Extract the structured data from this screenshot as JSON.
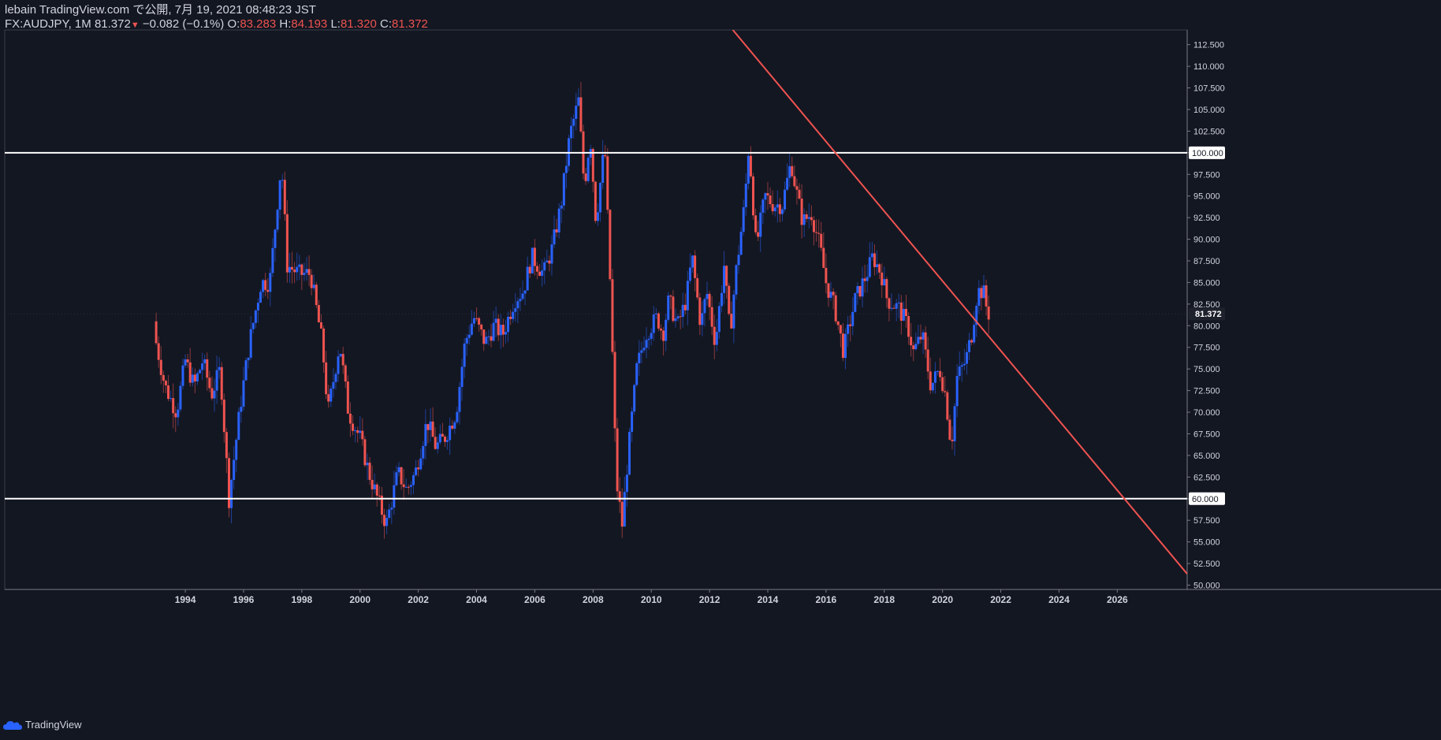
{
  "header": {
    "publish_line": "lebain TradingView.com で公開, 7月 19, 2021 08:48:23 JST",
    "symbol": "FX:AUDJPY, 1M",
    "last": "81.372",
    "change": "−0.082 (−0.1%)",
    "o_label": "O:",
    "o_value": "83.283",
    "h_label": "H:",
    "h_value": "84.193",
    "l_label": "L:",
    "l_value": "81.320",
    "c_label": "C:",
    "c_value": "81.372"
  },
  "footer": {
    "brand": "TradingView"
  },
  "colors": {
    "background": "#131722",
    "up": "#2962ff",
    "down": "#ef5350",
    "text": "#d1d4dc",
    "level": "#ffffff",
    "trendline": "#ef5350"
  },
  "chart_data": {
    "type": "candlestick",
    "symbol": "FX:AUDJPY",
    "interval": "1M",
    "x_ticks": [
      "1994",
      "1996",
      "1998",
      "2000",
      "2002",
      "2004",
      "2006",
      "2008",
      "2010",
      "2012",
      "2014",
      "2016",
      "2018",
      "2020",
      "2022",
      "2024",
      "2026"
    ],
    "x_range": [
      1987.8,
      2028.4
    ],
    "y_range": [
      49.5,
      114.2
    ],
    "y_ticks": [
      50,
      52.5,
      55,
      57.5,
      60,
      62.5,
      65,
      67.5,
      70,
      72.5,
      75,
      77.5,
      80,
      82.5,
      85,
      87.5,
      90,
      92.5,
      95,
      97.5,
      100,
      102.5,
      105,
      107.5,
      110,
      112.5
    ],
    "y_tick_labels": [
      "50.000",
      "52.500",
      "55.000",
      "57.500",
      "60.000",
      "62.500",
      "65.000",
      "67.500",
      "70.000",
      "72.500",
      "75.000",
      "77.500",
      "80.000",
      "82.500",
      "85.000",
      "87.500",
      "90.000",
      "92.500",
      "95.000",
      "97.500",
      "100.000",
      "102.500",
      "105.000",
      "107.500",
      "110.000",
      "112.500"
    ],
    "current_price": 81.372,
    "current_price_label": "81.372",
    "horizontal_levels": [
      {
        "value": 100.0,
        "label": "100.000"
      },
      {
        "value": 60.0,
        "label": "60.000"
      }
    ],
    "trendline": {
      "start": [
        2012.8,
        114.2
      ],
      "end": [
        2028.4,
        51.3
      ]
    },
    "close_keypoints": [
      [
        1993.0,
        78
      ],
      [
        1993.3,
        73
      ],
      [
        1993.7,
        70
      ],
      [
        1994.0,
        76
      ],
      [
        1994.3,
        73
      ],
      [
        1994.6,
        76
      ],
      [
        1994.9,
        72
      ],
      [
        1995.2,
        75
      ],
      [
        1995.5,
        60
      ],
      [
        1995.9,
        71
      ],
      [
        1996.2,
        78
      ],
      [
        1996.6,
        85
      ],
      [
        1996.9,
        85
      ],
      [
        1997.3,
        99
      ],
      [
        1997.5,
        87
      ],
      [
        1997.9,
        86
      ],
      [
        1998.3,
        86
      ],
      [
        1998.7,
        78
      ],
      [
        1998.9,
        70
      ],
      [
        1999.3,
        78
      ],
      [
        1999.6,
        70
      ],
      [
        2000.0,
        67
      ],
      [
        2000.3,
        63
      ],
      [
        2000.6,
        60
      ],
      [
        2000.9,
        57
      ],
      [
        2001.3,
        63
      ],
      [
        2001.6,
        61
      ],
      [
        2001.9,
        63
      ],
      [
        2002.3,
        69
      ],
      [
        2002.6,
        66
      ],
      [
        2002.9,
        67
      ],
      [
        2003.3,
        70
      ],
      [
        2003.6,
        78
      ],
      [
        2003.9,
        81
      ],
      [
        2004.3,
        78
      ],
      [
        2004.6,
        80
      ],
      [
        2004.9,
        79
      ],
      [
        2005.3,
        83
      ],
      [
        2005.6,
        84
      ],
      [
        2005.9,
        88
      ],
      [
        2006.3,
        86
      ],
      [
        2006.6,
        89
      ],
      [
        2006.9,
        94
      ],
      [
        2007.2,
        102
      ],
      [
        2007.5,
        106
      ],
      [
        2007.7,
        96
      ],
      [
        2007.9,
        102
      ],
      [
        2008.1,
        92
      ],
      [
        2008.4,
        101
      ],
      [
        2008.6,
        84
      ],
      [
        2008.8,
        62
      ],
      [
        2009.0,
        57
      ],
      [
        2009.2,
        65
      ],
      [
        2009.5,
        75
      ],
      [
        2009.8,
        79
      ],
      [
        2010.2,
        81
      ],
      [
        2010.4,
        79
      ],
      [
        2010.6,
        83
      ],
      [
        2010.9,
        80
      ],
      [
        2011.2,
        83
      ],
      [
        2011.4,
        88
      ],
      [
        2011.7,
        80
      ],
      [
        2011.9,
        84
      ],
      [
        2012.2,
        78
      ],
      [
        2012.5,
        87
      ],
      [
        2012.7,
        79
      ],
      [
        2012.9,
        86
      ],
      [
        2013.2,
        94
      ],
      [
        2013.35,
        101
      ],
      [
        2013.6,
        89
      ],
      [
        2013.9,
        95
      ],
      [
        2014.2,
        94
      ],
      [
        2014.5,
        94
      ],
      [
        2014.8,
        99
      ],
      [
        2014.95,
        96
      ],
      [
        2015.2,
        92
      ],
      [
        2015.5,
        93
      ],
      [
        2015.8,
        89
      ],
      [
        2016.0,
        85
      ],
      [
        2016.3,
        82
      ],
      [
        2016.6,
        77
      ],
      [
        2016.8,
        80
      ],
      [
        2017.0,
        83
      ],
      [
        2017.4,
        86
      ],
      [
        2017.6,
        88
      ],
      [
        2017.9,
        86
      ],
      [
        2018.1,
        83
      ],
      [
        2018.5,
        82
      ],
      [
        2018.8,
        80
      ],
      [
        2019.0,
        77
      ],
      [
        2019.3,
        79
      ],
      [
        2019.6,
        73
      ],
      [
        2019.9,
        75
      ],
      [
        2020.1,
        72
      ],
      [
        2020.3,
        66
      ],
      [
        2020.5,
        74
      ],
      [
        2020.8,
        76
      ],
      [
        2021.0,
        79
      ],
      [
        2021.2,
        84
      ],
      [
        2021.4,
        84
      ],
      [
        2021.55,
        81.4
      ]
    ]
  }
}
